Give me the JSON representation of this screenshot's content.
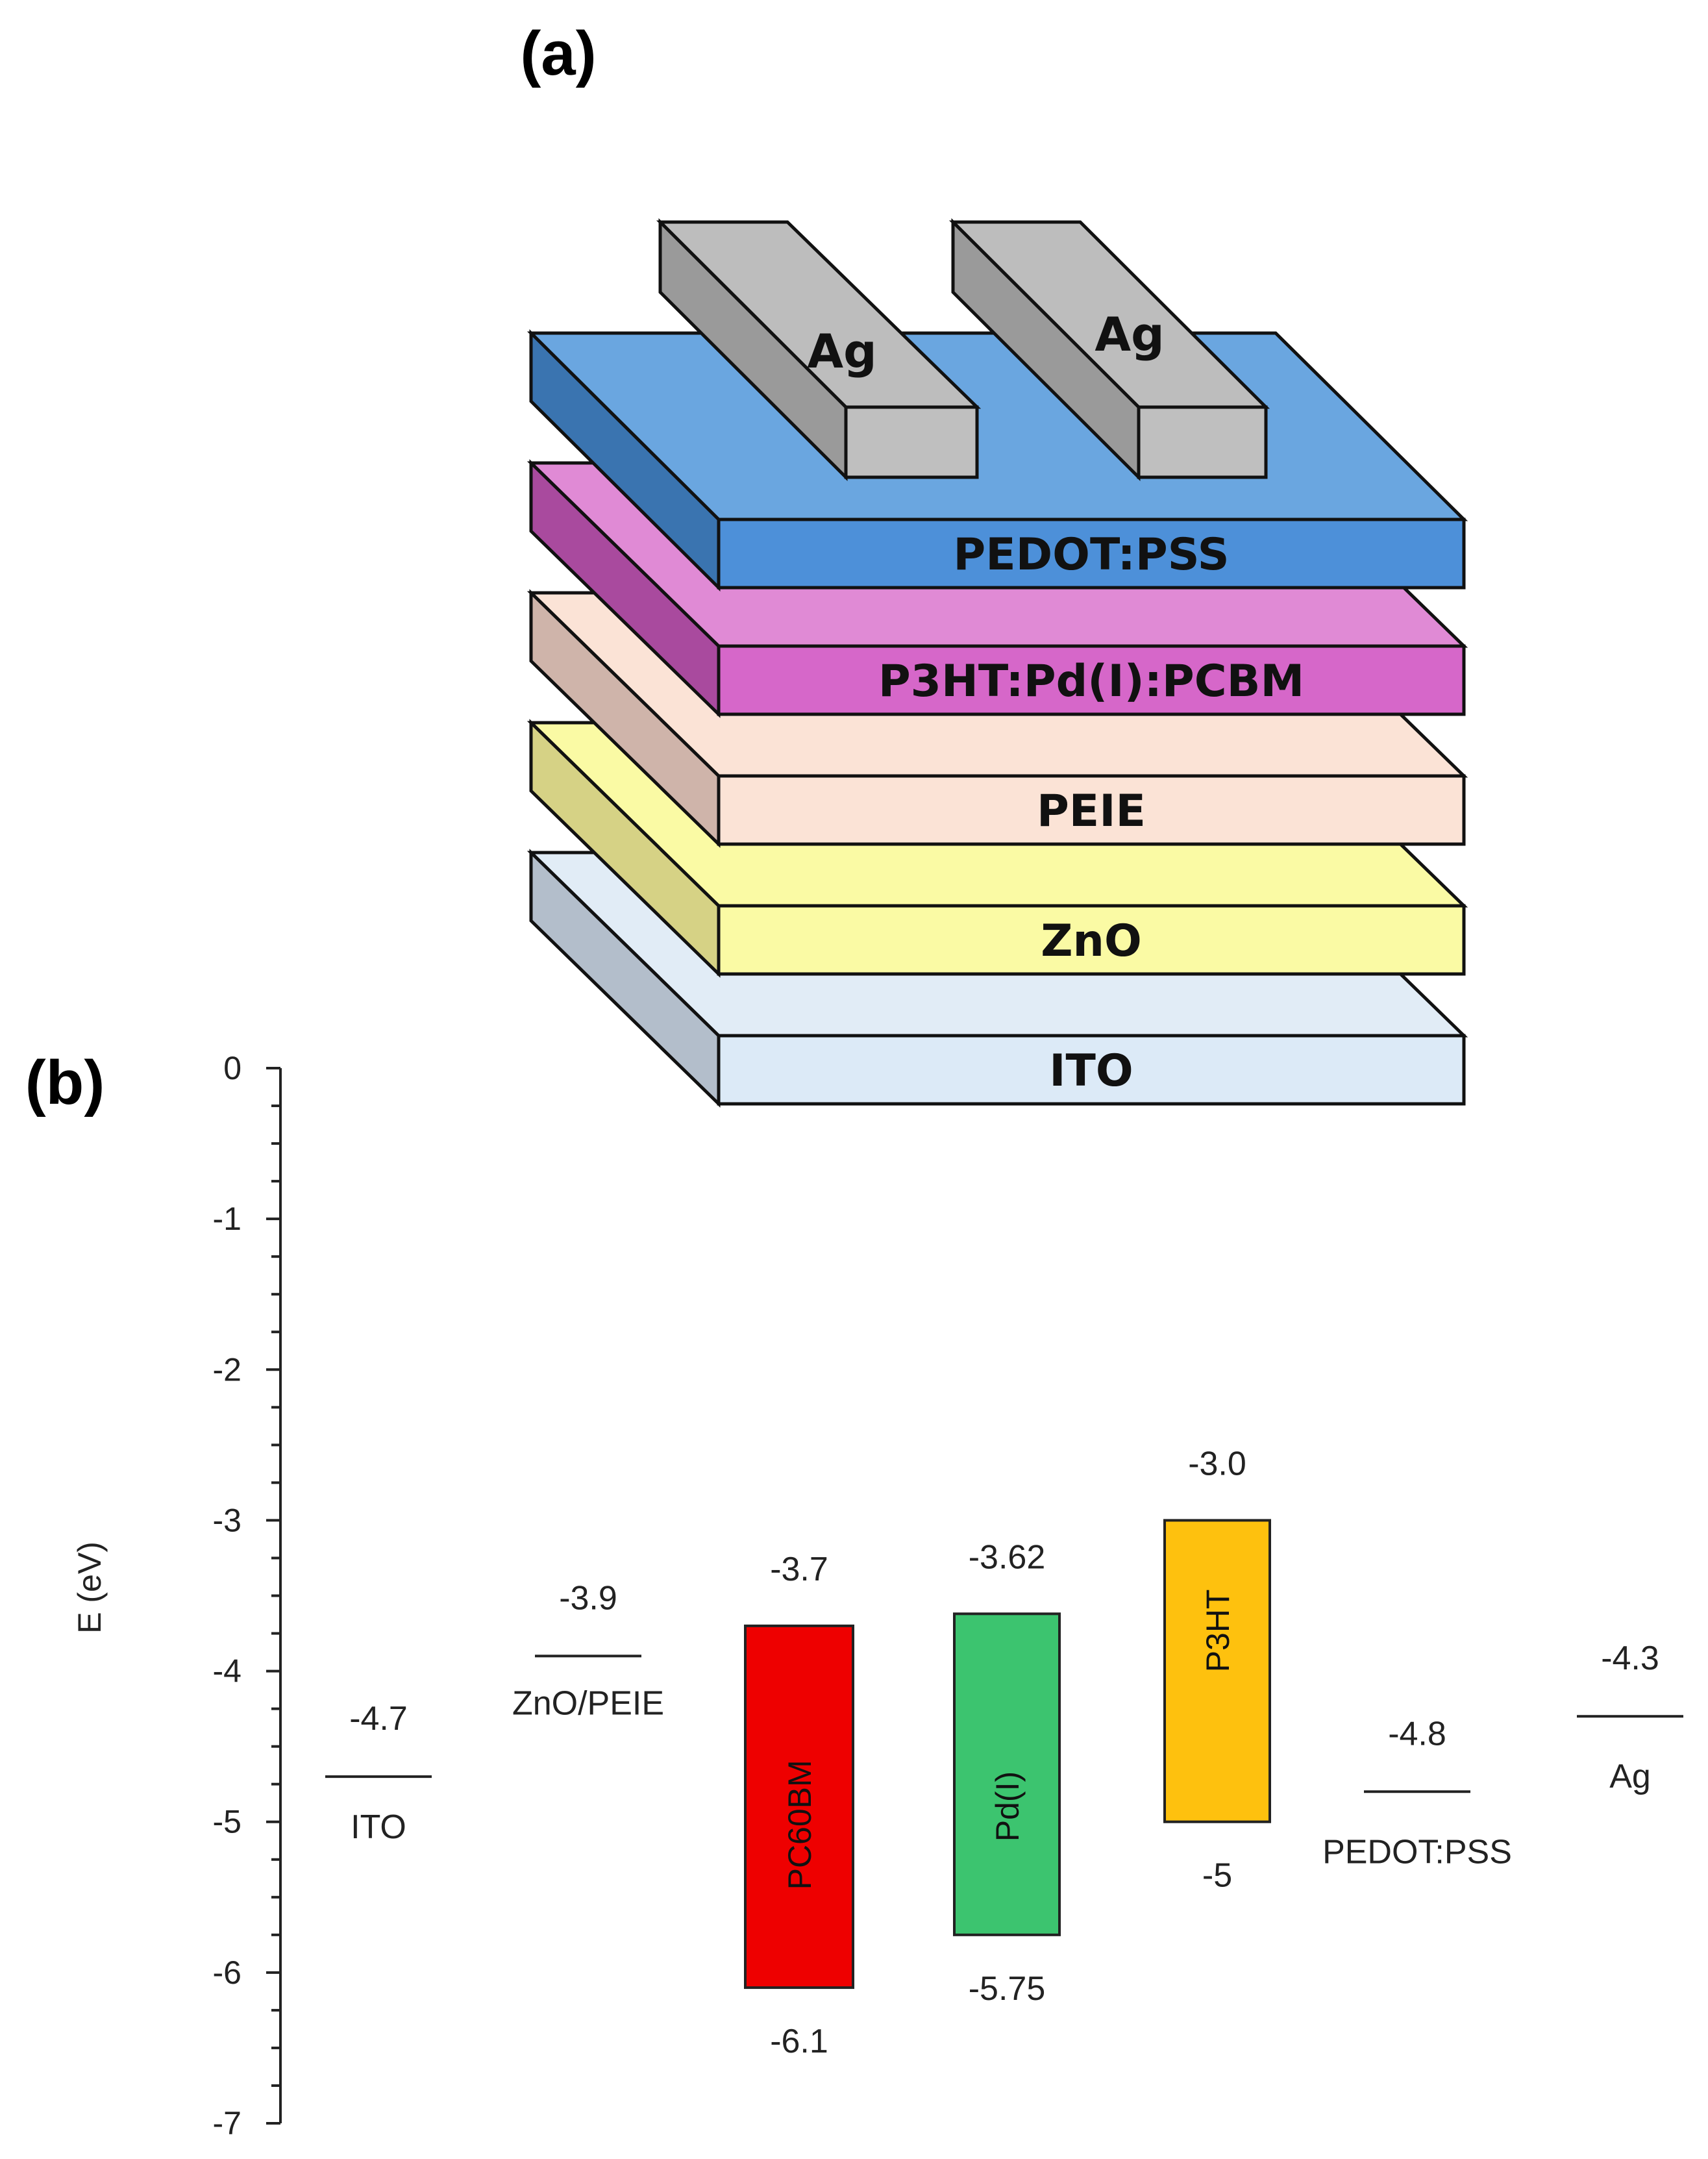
{
  "figure": {
    "panel_a_label": "(a)",
    "panel_b_label": "(b)"
  },
  "device_stack": {
    "layers": [
      {
        "name": "ito",
        "label": "ITO",
        "front": "#dceaf7",
        "top": "#e1ecf6",
        "side": "#b3becb"
      },
      {
        "name": "zno",
        "label": "ZnO",
        "front": "#fafaa4",
        "top": "#fafaa4",
        "side": "#d6d285"
      },
      {
        "name": "peie",
        "label": "PEIE",
        "front": "#fbe3d6",
        "top": "#fbe3d6",
        "side": "#cfb4aa"
      },
      {
        "name": "active",
        "label": "P3HT:Pd(I):PCBM",
        "front": "#d667c9",
        "top": "#e08ad5",
        "side": "#a94a9e"
      },
      {
        "name": "pedot",
        "label": "PEDOT:PSS",
        "front": "#4d90d9",
        "top": "#6aa6e0",
        "side": "#3a74b0"
      }
    ],
    "electrodes": [
      {
        "label": "Ag"
      },
      {
        "label": "Ag"
      }
    ],
    "electrode_colors": {
      "front": "#bfbfbf",
      "top": "#bdbdbd",
      "side": "#9a9a9a"
    }
  },
  "chart_data": {
    "type": "energy-level diagram",
    "ylabel": "E (eV)",
    "ylim": [
      -7,
      0
    ],
    "yticks": [
      "0",
      "-1",
      "-2",
      "-3",
      "-4",
      "-5",
      "-6",
      "-7"
    ],
    "levels": [
      {
        "name": "ITO",
        "value": -4.7,
        "value_label": "-4.7"
      },
      {
        "name": "ZnO/PEIE",
        "value": -3.9,
        "value_label": "-3.9"
      },
      {
        "name": "PEDOT:PSS",
        "value": -4.8,
        "value_label": "-4.8"
      },
      {
        "name": "Ag",
        "value": -4.3,
        "value_label": "-4.3"
      }
    ],
    "bands": [
      {
        "name": "PC60BM",
        "lumo": -3.7,
        "homo": -6.1,
        "lumo_label": "-3.7",
        "homo_label": "-6.1",
        "color": "#ee0000"
      },
      {
        "name": "Pd(I)",
        "lumo": -3.62,
        "homo": -5.75,
        "lumo_label": "-3.62",
        "homo_label": "-5.75",
        "color": "#3cc46f"
      },
      {
        "name": "P3HT",
        "lumo": -3.0,
        "homo": -5.0,
        "lumo_label": "-3.0",
        "homo_label": "-5",
        "color": "#fec10e"
      }
    ]
  }
}
